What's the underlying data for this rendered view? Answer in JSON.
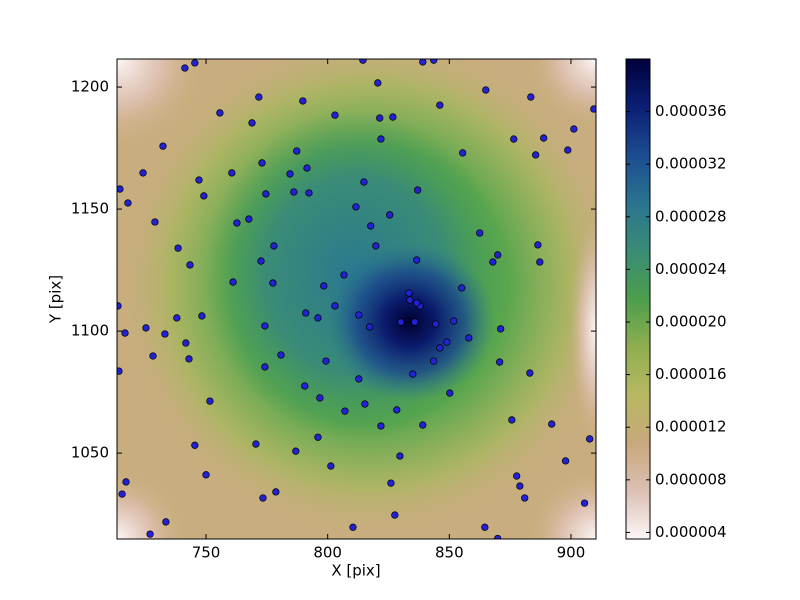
{
  "chart_data": {
    "type": "scatter",
    "xlabel": "X [pix]",
    "ylabel": "Y [pix]",
    "xlim": [
      713.4,
      910.3
    ],
    "ylim": [
      1014.8,
      1211.5
    ],
    "xticks": [
      750,
      800,
      850,
      900
    ],
    "yticks": [
      1050,
      1100,
      1150,
      1200
    ],
    "color": "#2222d4",
    "colormap": [
      "#fbf6f6",
      "#dcc0b4",
      "#c8a87c",
      "#b8b862",
      "#8fae50",
      "#4c9e4c",
      "#3a8c76",
      "#2a7490",
      "#1c4c90",
      "#0c1f74",
      "#00003c"
    ],
    "clim": [
      3.5e-06,
      4e-05
    ],
    "cticks": [
      {
        "value": 4e-06,
        "label": "0.000004"
      },
      {
        "value": 8e-06,
        "label": "0.000008"
      },
      {
        "value": 1.2e-05,
        "label": "0.000012"
      },
      {
        "value": 1.6e-05,
        "label": "0.000016"
      },
      {
        "value": 2e-05,
        "label": "0.000020"
      },
      {
        "value": 2.4e-05,
        "label": "0.000024"
      },
      {
        "value": 2.8e-05,
        "label": "0.000028"
      },
      {
        "value": 3.2e-05,
        "label": "0.000032"
      },
      {
        "value": 3.6e-05,
        "label": "0.000036"
      }
    ],
    "x": [
      814.5,
      839.1,
      843.6,
      741.3,
      745.4,
      820.6,
      865.0,
      771.7,
      789.8,
      846.1,
      883.5,
      909.4,
      755.7,
      803.0,
      821.4,
      826.8,
      768.9,
      876.5,
      888.8,
      901.2,
      821.9,
      732.3,
      787.3,
      885.5,
      855.5,
      898.7,
      773.0,
      784.5,
      724.1,
      791.5,
      747.1,
      814.9,
      837.0,
      714.6,
      749.1,
      717.9,
      760.6,
      774.6,
      786.1,
      792.3,
      811.6,
      825.5,
      817.7,
      767.6,
      762.7,
      729.0,
      862.5,
      886.4,
      738.5,
      777.9,
      819.8,
      869.9,
      867.9,
      743.4,
      772.6,
      887.2,
      836.6,
      806.7,
      761.1,
      777.5,
      798.4,
      855.1,
      803.0,
      713.8,
      837.9,
      836.6,
      833.4,
      833.8,
      791.0,
      796.0,
      812.8,
      817.3,
      830.1,
      738.0,
      748.3,
      851.8,
      844.4,
      835.8,
      871.1,
      774.2,
      725.3,
      716.7,
      733.1,
      741.7,
      858.0,
      849.0,
      846.1,
      743.0,
      728.2,
      780.8,
      843.6,
      799.3,
      870.7,
      774.2,
      714.2,
      835.0,
      812.8,
      883.1,
      790.6,
      850.2,
      796.8,
      751.6,
      815.3,
      807.1,
      828.4,
      821.9,
      839.1,
      875.7,
      892.1,
      796.0,
      745.4,
      770.5,
      786.9,
      829.7,
      907.7,
      897.8,
      801.3,
      750.0,
      877.7,
      826.0,
      717.1,
      879.0,
      778.7,
      773.4,
      715.5,
      881.0,
      905.6,
      827.6,
      810.4,
      864.6,
      733.5,
      727.0,
      869.9
    ],
    "y": [
      1211.0,
      1210.3,
      1211.0,
      1207.8,
      1209.9,
      1201.7,
      1198.8,
      1195.9,
      1194.3,
      1192.6,
      1195.9,
      1191.0,
      1189.4,
      1188.5,
      1187.3,
      1187.7,
      1185.3,
      1178.7,
      1179.1,
      1182.8,
      1178.7,
      1175.8,
      1173.8,
      1172.2,
      1173.0,
      1174.2,
      1168.9,
      1164.4,
      1164.8,
      1166.8,
      1161.9,
      1161.1,
      1157.8,
      1158.2,
      1155.4,
      1152.5,
      1164.8,
      1156.2,
      1157.0,
      1156.6,
      1150.9,
      1147.6,
      1143.1,
      1145.9,
      1144.3,
      1144.7,
      1140.2,
      1135.3,
      1134.0,
      1134.9,
      1134.9,
      1131.2,
      1128.3,
      1127.1,
      1128.7,
      1128.3,
      1129.1,
      1123.0,
      1120.1,
      1119.7,
      1118.5,
      1117.7,
      1110.3,
      1110.3,
      1110.3,
      1111.5,
      1115.6,
      1112.7,
      1107.4,
      1105.4,
      1106.6,
      1101.7,
      1103.7,
      1105.4,
      1106.2,
      1104.1,
      1102.9,
      1103.7,
      1100.9,
      1102.1,
      1101.3,
      1099.2,
      1098.8,
      1095.1,
      1097.2,
      1095.5,
      1093.1,
      1088.6,
      1089.8,
      1090.2,
      1087.7,
      1087.7,
      1087.3,
      1085.3,
      1083.6,
      1082.4,
      1080.4,
      1082.8,
      1077.5,
      1074.6,
      1072.6,
      1071.3,
      1070.1,
      1067.2,
      1067.7,
      1061.1,
      1061.5,
      1063.6,
      1061.9,
      1056.5,
      1053.2,
      1053.7,
      1050.8,
      1048.8,
      1055.8,
      1046.8,
      1044.7,
      1041.1,
      1040.6,
      1037.7,
      1038.2,
      1036.5,
      1034.1,
      1031.6,
      1033.2,
      1031.6,
      1029.5,
      1024.6,
      1019.6,
      1019.6,
      1021.8,
      1016.8,
      1015.0
    ]
  }
}
